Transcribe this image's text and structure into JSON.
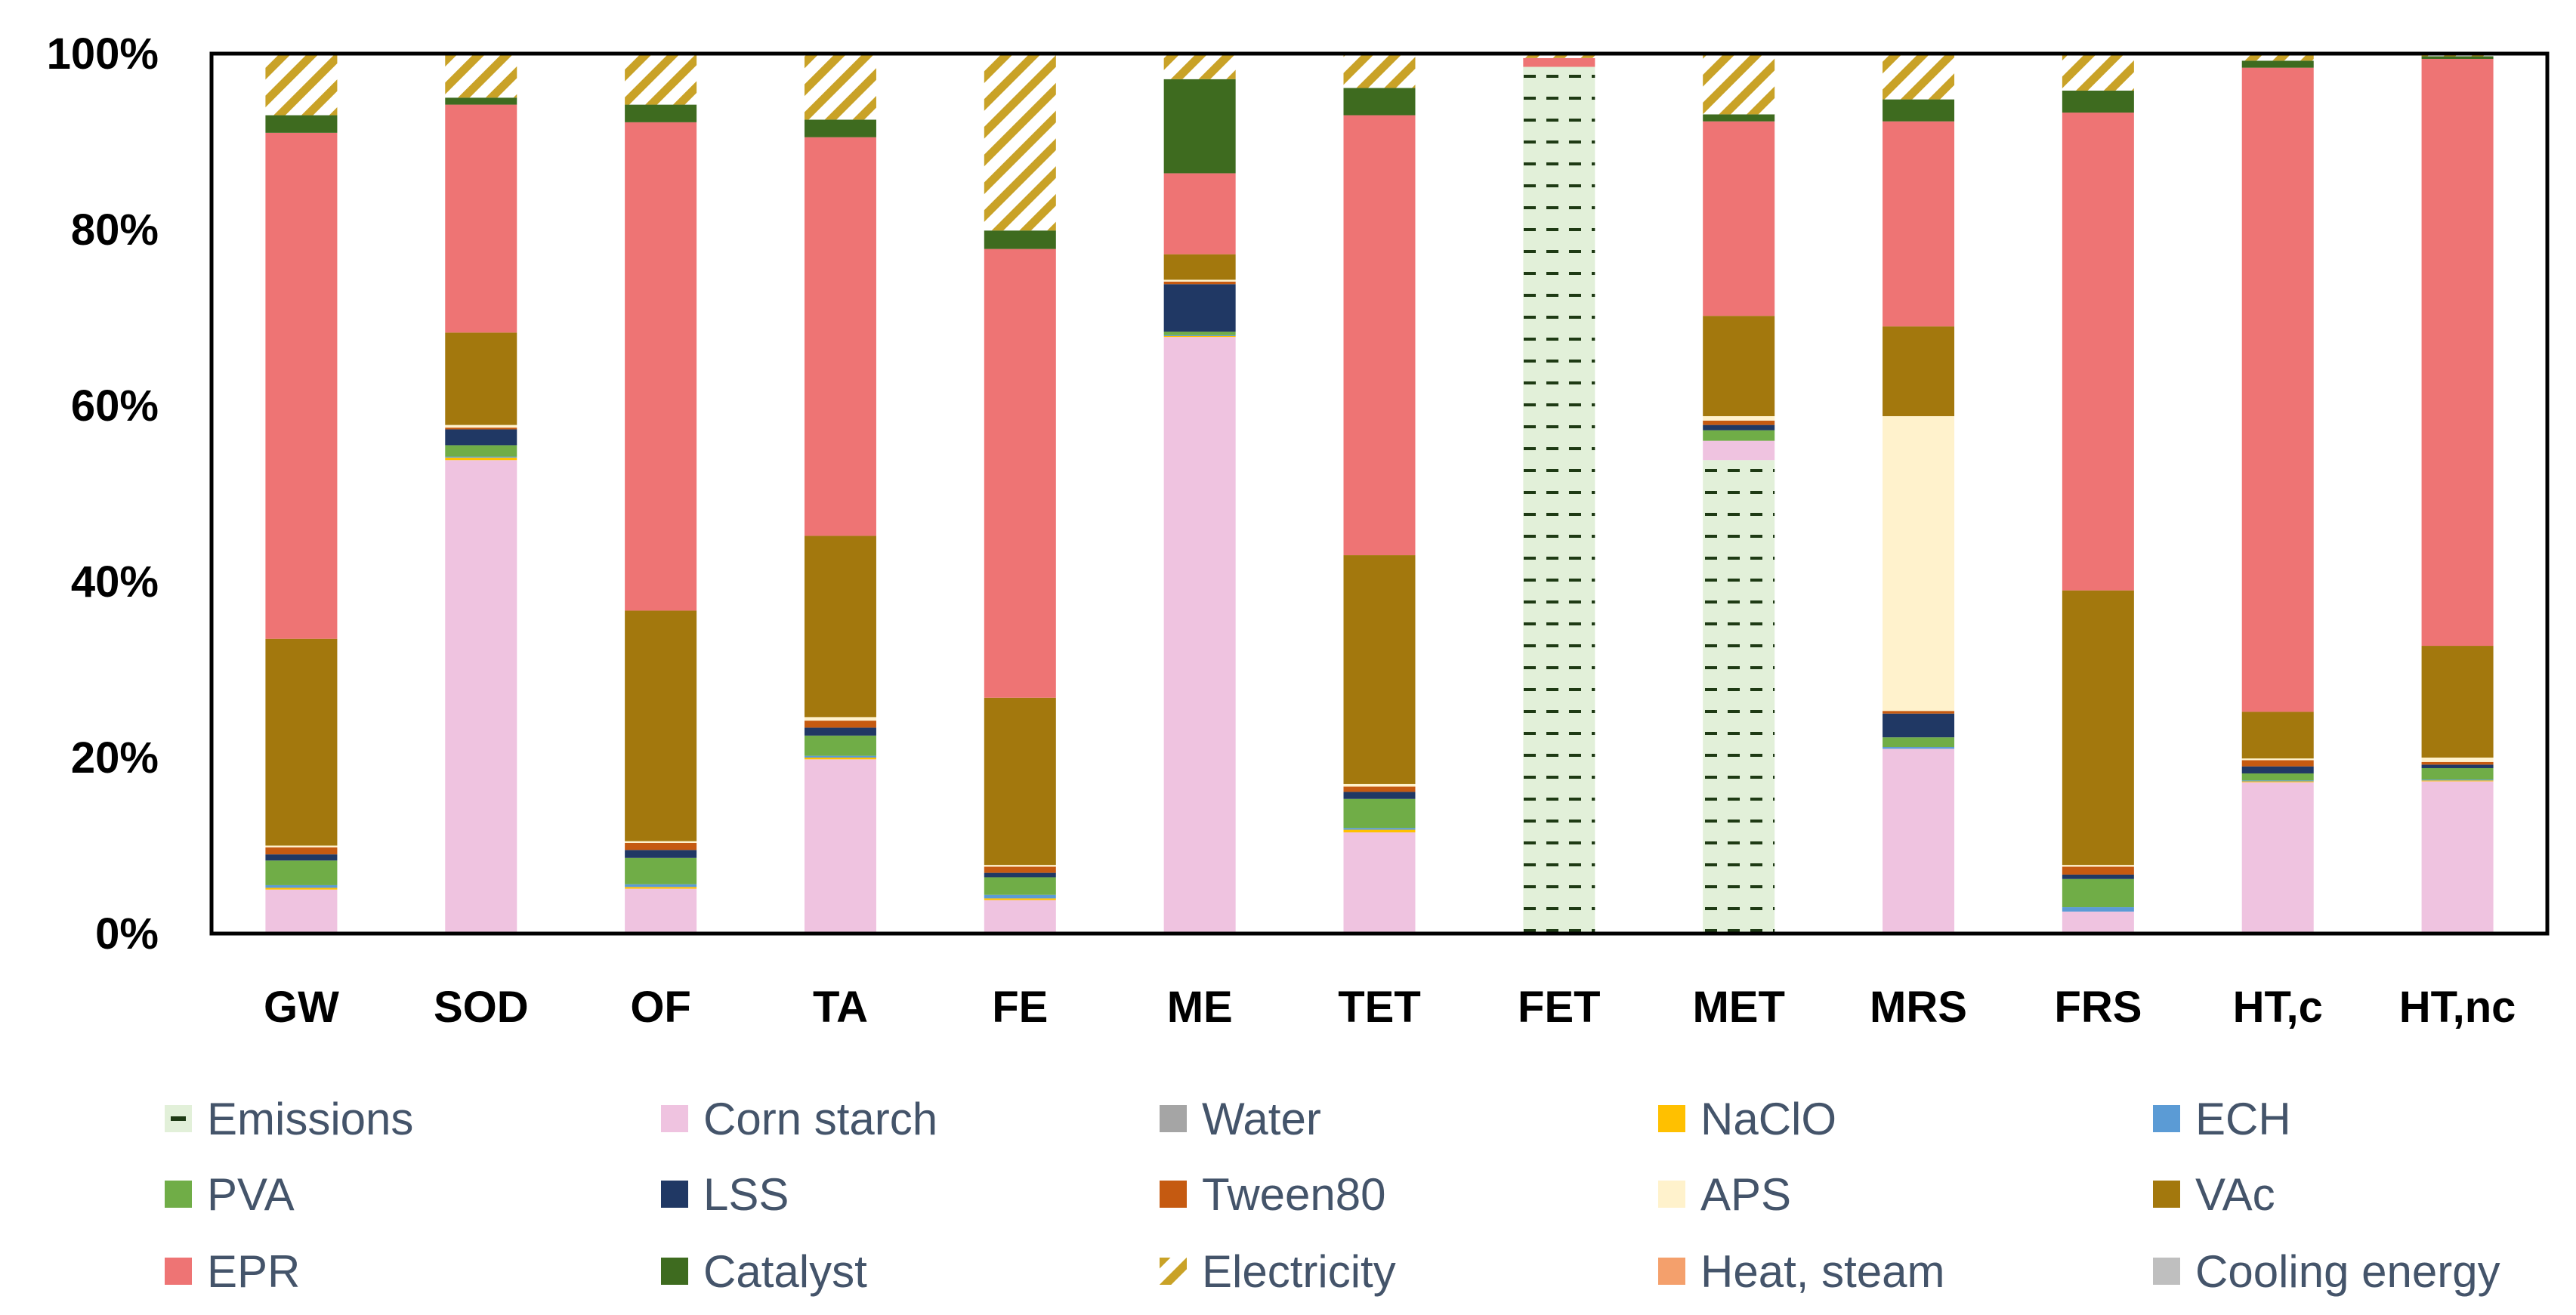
{
  "chart_data": {
    "type": "bar",
    "stacked": true,
    "normalized": true,
    "title": "",
    "xlabel": "",
    "ylabel": "",
    "ylim": [
      0,
      100
    ],
    "y_ticks": [
      "0%",
      "20%",
      "40%",
      "60%",
      "80%",
      "100%"
    ],
    "grid": false,
    "legend_position": "bottom",
    "categories": [
      "GW",
      "SOD",
      "OF",
      "TA",
      "FE",
      "ME",
      "TET",
      "FET",
      "MET",
      "MRS",
      "FRS",
      "HT,c",
      "HT,nc"
    ],
    "series": [
      {
        "name": "Emissions",
        "color": "#e2f0d9",
        "pattern": "dash",
        "values": [
          0,
          0,
          0,
          0,
          0,
          0,
          0,
          98.5,
          53.8,
          0,
          0,
          0,
          0
        ]
      },
      {
        "name": "Corn starch",
        "color": "#efc3e0",
        "values": [
          5.0,
          53.8,
          5.1,
          19.8,
          3.8,
          67.8,
          11.5,
          0,
          2.2,
          21.0,
          2.5,
          17.2,
          17.3
        ]
      },
      {
        "name": "Water",
        "color": "#a5a5a5",
        "values": [
          0,
          0,
          0,
          0,
          0,
          0,
          0,
          0,
          0,
          0,
          0,
          0,
          0
        ]
      },
      {
        "name": "NaClO",
        "color": "#ffc000",
        "values": [
          0.2,
          0.3,
          0.2,
          0.2,
          0.2,
          0.1,
          0.3,
          0,
          0,
          0,
          0,
          0.1,
          0.1
        ]
      },
      {
        "name": "ECH",
        "color": "#5b9bd5",
        "values": [
          0.3,
          0.1,
          0.3,
          0.2,
          0.4,
          0.1,
          0.2,
          0,
          0,
          0.2,
          0.5,
          0.1,
          0.1
        ]
      },
      {
        "name": "PVA",
        "color": "#70ad47",
        "values": [
          2.8,
          1.3,
          3.0,
          2.3,
          2.0,
          0.4,
          3.3,
          0,
          1.2,
          1.1,
          3.2,
          0.8,
          1.3
        ]
      },
      {
        "name": "LSS",
        "color": "#203864",
        "values": [
          0.7,
          1.8,
          0.9,
          0.9,
          0.5,
          5.4,
          0.8,
          0,
          0.6,
          2.7,
          0.5,
          0.8,
          0.4
        ]
      },
      {
        "name": "Tween80",
        "color": "#c55a11",
        "values": [
          0.8,
          0.2,
          0.8,
          0.8,
          0.7,
          0.3,
          0.6,
          0,
          0.5,
          0.3,
          0.9,
          0.7,
          0.3
        ]
      },
      {
        "name": "APS",
        "color": "#fff2cc",
        "values": [
          0.2,
          0.3,
          0.2,
          0.4,
          0.2,
          0.2,
          0.3,
          0,
          0.5,
          33.5,
          0.2,
          0.2,
          0.5
        ]
      },
      {
        "name": "VAc",
        "color": "#a3780d",
        "values": [
          23.5,
          10.5,
          26.2,
          20.6,
          19.0,
          2.9,
          26.0,
          0,
          11.4,
          10.2,
          31.2,
          5.3,
          12.7
        ]
      },
      {
        "name": "EPR",
        "color": "#ee7474",
        "values": [
          57.5,
          25.9,
          55.5,
          45.3,
          51.0,
          9.2,
          50.0,
          1.0,
          22.1,
          23.3,
          54.3,
          73.2,
          66.7
        ]
      },
      {
        "name": "Catalyst",
        "color": "#3e6b1f",
        "values": [
          2.0,
          0.8,
          2.0,
          2.0,
          2.1,
          10.7,
          3.1,
          0,
          0.8,
          2.5,
          2.5,
          0.8,
          0.3
        ]
      },
      {
        "name": "Electricity",
        "color": "#c9a227",
        "pattern": "hatch",
        "values": [
          7.0,
          5.0,
          5.8,
          7.5,
          20.1,
          2.8,
          3.9,
          0.5,
          7.0,
          5.2,
          4.2,
          0.8,
          0.3
        ]
      },
      {
        "name": "Heat, steam",
        "color": "#f4a06c",
        "values": [
          0,
          0,
          0,
          0,
          0,
          0,
          0,
          0,
          0,
          0,
          0,
          0,
          0
        ]
      },
      {
        "name": "Cooling energy",
        "color": "#bfbfbf",
        "values": [
          0,
          0,
          0,
          0,
          0,
          0,
          0,
          0,
          0,
          0,
          0,
          0,
          0
        ]
      }
    ]
  }
}
